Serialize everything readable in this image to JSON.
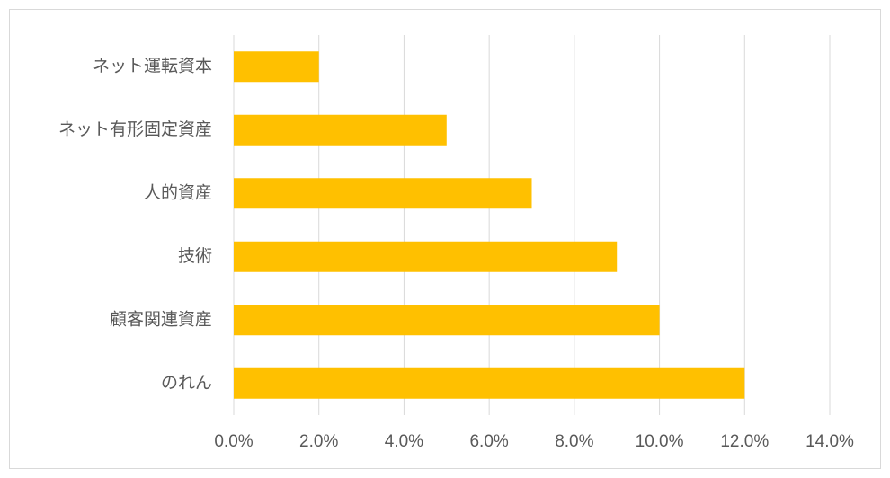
{
  "chart_data": {
    "type": "bar",
    "orientation": "horizontal",
    "categories": [
      "ネット運転資本",
      "ネット有形固定資産",
      "人的資産",
      "技術",
      "顧客関連資産",
      "のれん"
    ],
    "values": [
      2,
      5,
      7,
      9,
      10,
      12
    ],
    "color": "#ffc000",
    "xlim": [
      0,
      14
    ],
    "xticks": [
      {
        "value": 0,
        "label": "0.0%"
      },
      {
        "value": 2,
        "label": "2.0%"
      },
      {
        "value": 4,
        "label": "4.0%"
      },
      {
        "value": 6,
        "label": "6.0%"
      },
      {
        "value": 8,
        "label": "8.0%"
      },
      {
        "value": 10,
        "label": "10.0%"
      },
      {
        "value": 12,
        "label": "12.0%"
      },
      {
        "value": 14,
        "label": "14.0%"
      }
    ],
    "grid": true
  }
}
